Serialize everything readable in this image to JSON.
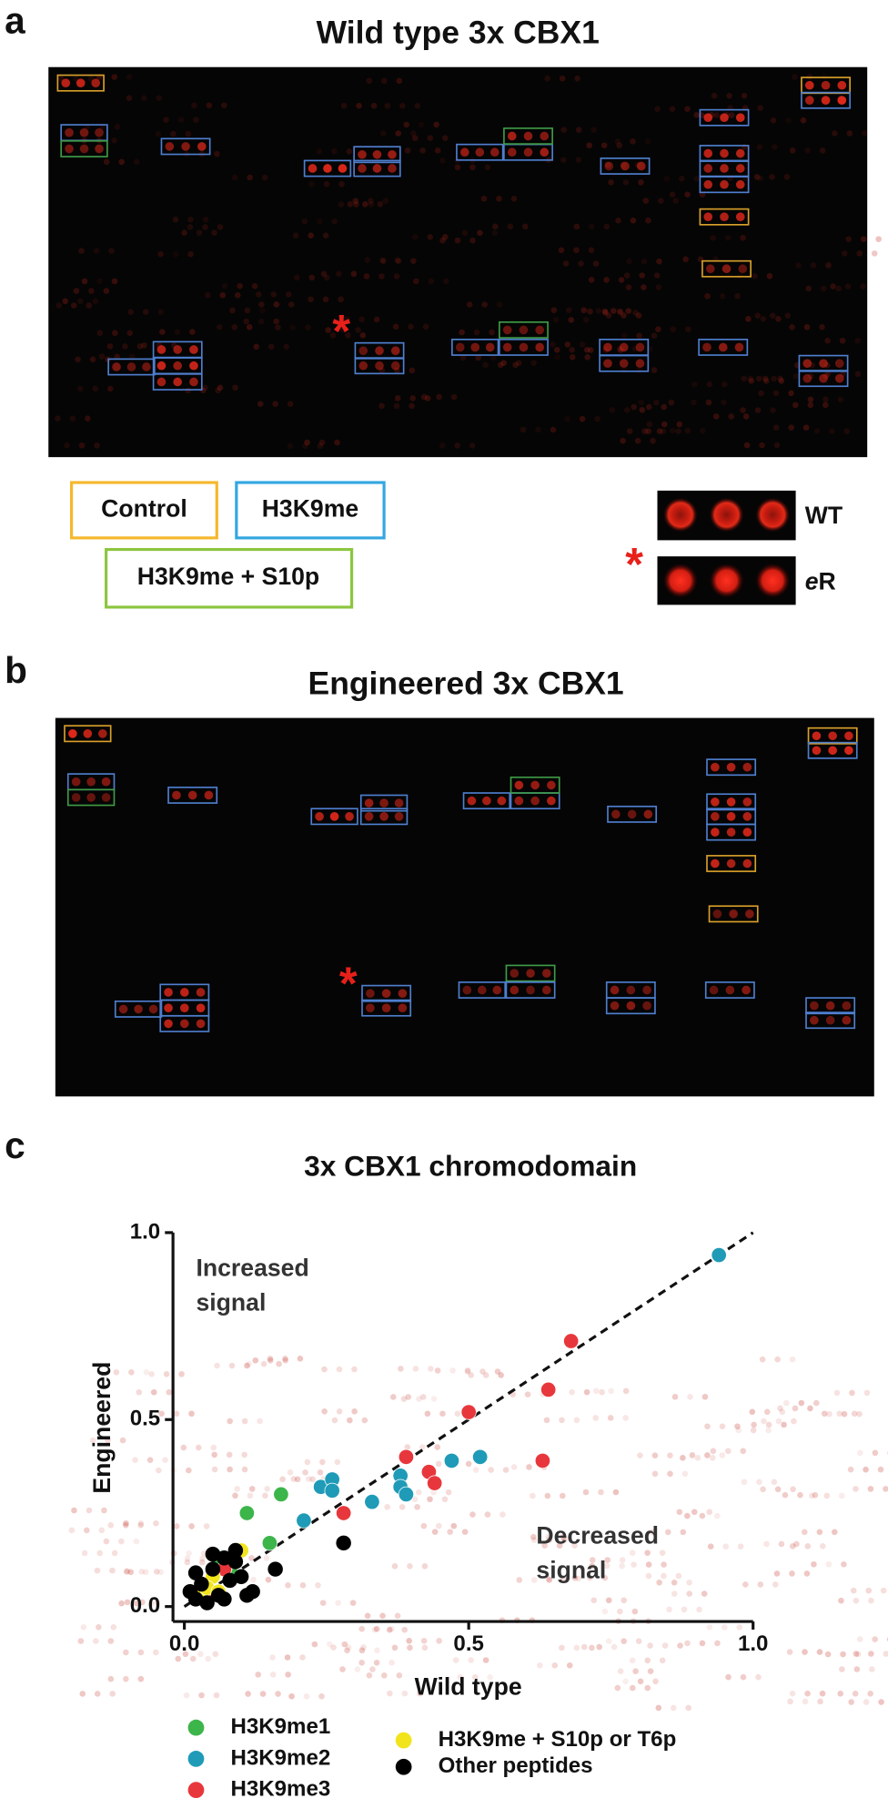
{
  "panel_a": {
    "label": "a",
    "title": "Wild type 3x CBX1"
  },
  "legend_boxes": [
    "Control",
    "H3K9me",
    "H3K9me + S10p"
  ],
  "marker": "*",
  "inset": {
    "wt_label": "WT",
    "variant_label": [
      "e",
      "R"
    ]
  },
  "panel_b": {
    "label": "b",
    "title": "Engineered 3x CBX1"
  },
  "panel_c": {
    "label": "c"
  },
  "chart_data": {
    "type": "scatter",
    "title": "3x CBX1 chromodomain",
    "x_label": "Wild type",
    "y_label": "Engineered",
    "annotations": [
      [
        "Increased",
        "signal"
      ],
      [
        "Decreased",
        "signal"
      ]
    ],
    "xlim": [
      -0.02,
      1.0
    ],
    "ylim": [
      -0.04,
      1.0
    ],
    "xticks": [
      {
        "value": 0,
        "label": "0.0"
      },
      0.5,
      {
        "value": 1,
        "label": "1.0"
      }
    ],
    "yticks": [
      {
        "value": 0,
        "label": "0.0"
      },
      0.5,
      {
        "value": 1,
        "label": "1.0"
      }
    ],
    "grid": false,
    "series": [
      {
        "name": "H3K9me1",
        "color": "#3cb54a",
        "x": [
          0.11,
          0.17,
          0.15,
          0.06,
          0.08
        ],
        "y": [
          0.25,
          0.3,
          0.17,
          0.13,
          0.1
        ]
      },
      {
        "name": "H3K9me2",
        "color": "#1f9bb8",
        "x": [
          0.94,
          0.24,
          0.26,
          0.26,
          0.21,
          0.33,
          0.38,
          0.38,
          0.39,
          0.47,
          0.52,
          0.08,
          0.05
        ],
        "y": [
          0.94,
          0.32,
          0.34,
          0.31,
          0.23,
          0.28,
          0.35,
          0.32,
          0.3,
          0.39,
          0.4,
          0.12,
          0.08
        ]
      },
      {
        "name": "H3K9me3",
        "color": "#e8373c",
        "x": [
          0.68,
          0.64,
          0.5,
          0.39,
          0.43,
          0.44,
          0.63,
          0.28,
          0.04,
          0.07
        ],
        "y": [
          0.71,
          0.58,
          0.52,
          0.4,
          0.36,
          0.33,
          0.39,
          0.25,
          0.04,
          0.1
        ]
      },
      {
        "name": "H3K9me + S10p or T6p",
        "color": "#f2e41c",
        "x": [
          0.1,
          0.05,
          0.03,
          0.04,
          0.06
        ],
        "y": [
          0.15,
          0.08,
          0.03,
          0.05,
          0.04
        ]
      },
      {
        "name": "Other peptides",
        "color": "#000000",
        "x": [
          0.28,
          0.16,
          0.12,
          0.02,
          0.03,
          0.05,
          0.07,
          0.09,
          0.08,
          0.06,
          0.04,
          0.1,
          0.02,
          0.11,
          0.01,
          0.07,
          0.09,
          0.05
        ],
        "y": [
          0.17,
          0.1,
          0.04,
          0.02,
          0.06,
          0.1,
          0.13,
          0.12,
          0.07,
          0.03,
          0.01,
          0.08,
          0.09,
          0.03,
          0.04,
          0.02,
          0.15,
          0.14
        ]
      }
    ]
  }
}
